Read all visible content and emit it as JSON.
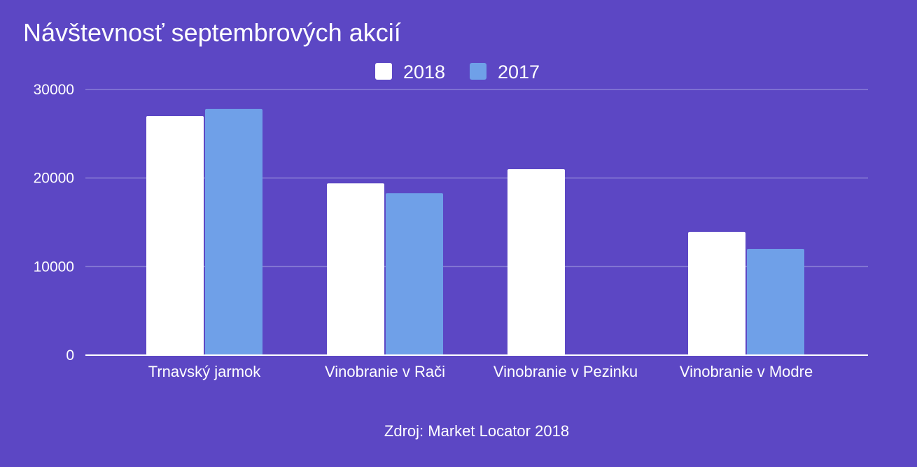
{
  "chart_data": {
    "type": "bar",
    "title": "Návštevnosť septembrových akcií",
    "categories": [
      "Trnavský jarmok",
      "Vinobranie v Rači",
      "Vinobranie v Pezinku",
      "Vinobranie v Modre"
    ],
    "series": [
      {
        "name": "2018",
        "values": [
          27000,
          19400,
          21000,
          13900
        ],
        "color": "#ffffff"
      },
      {
        "name": "2017",
        "values": [
          27800,
          18300,
          null,
          12000
        ],
        "color": "#6fa0e8"
      }
    ],
    "yticks": [
      0,
      10000,
      20000,
      30000
    ],
    "ylim": [
      0,
      30000
    ],
    "grid": true,
    "legend_position": "top-center",
    "source": "Zdroj: Market Locator 2018",
    "colors": {
      "background": "#5c47c4",
      "gridline": "#8a7ed6",
      "axis": "#ffffff"
    }
  }
}
